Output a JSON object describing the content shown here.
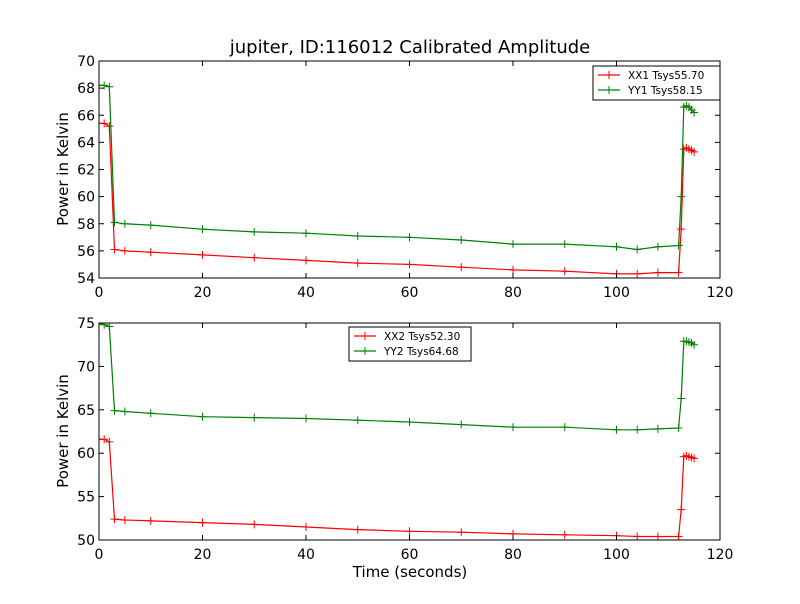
{
  "chart_data": [
    {
      "type": "line",
      "title": "jupiter, ID:116012 Calibrated Amplitude",
      "xlabel": "",
      "ylabel": "Power in Kelvin",
      "xlim": [
        0,
        120
      ],
      "ylim": [
        54,
        70
      ],
      "xticks": [
        "0",
        "20",
        "40",
        "60",
        "80",
        "100",
        "120"
      ],
      "yticks": [
        "54",
        "56",
        "58",
        "60",
        "62",
        "64",
        "66",
        "68",
        "70"
      ],
      "legend_position": "top-right",
      "series": [
        {
          "name": "XX1 Tsys55.70",
          "color": "#ff0000",
          "x": [
            0,
            1,
            2,
            3,
            5,
            10,
            20,
            30,
            40,
            50,
            60,
            70,
            80,
            90,
            100,
            104,
            108,
            112,
            112.5,
            113,
            113.5,
            114,
            114.5,
            115
          ],
          "y": [
            65.4,
            65.4,
            65.2,
            56.1,
            56.0,
            55.9,
            55.7,
            55.5,
            55.3,
            55.1,
            55.0,
            54.8,
            54.6,
            54.5,
            54.3,
            54.3,
            54.4,
            54.4,
            57.6,
            63.5,
            63.6,
            63.5,
            63.4,
            63.3
          ]
        },
        {
          "name": "YY1 Tsys58.15",
          "color": "#008000",
          "x": [
            0,
            1,
            2,
            3,
            5,
            10,
            20,
            30,
            40,
            50,
            60,
            70,
            80,
            90,
            100,
            104,
            108,
            112,
            112.5,
            113,
            113.5,
            114,
            114.5,
            115
          ],
          "y": [
            68.2,
            68.2,
            68.1,
            58.1,
            58.0,
            57.9,
            57.6,
            57.4,
            57.3,
            57.1,
            57.0,
            56.8,
            56.5,
            56.5,
            56.3,
            56.1,
            56.3,
            56.4,
            60.0,
            66.6,
            66.7,
            66.6,
            66.4,
            66.2
          ]
        }
      ]
    },
    {
      "type": "line",
      "title": "",
      "xlabel": "Time (seconds)",
      "ylabel": "Power in Kelvin",
      "xlim": [
        0,
        120
      ],
      "ylim": [
        50,
        75
      ],
      "xticks": [
        "0",
        "20",
        "40",
        "60",
        "80",
        "100",
        "120"
      ],
      "yticks": [
        "50",
        "55",
        "60",
        "65",
        "70",
        "75"
      ],
      "legend_position": "top-center",
      "series": [
        {
          "name": "XX2 Tsys52.30",
          "color": "#ff0000",
          "x": [
            0,
            1,
            2,
            3,
            5,
            10,
            20,
            30,
            40,
            50,
            60,
            70,
            80,
            90,
            100,
            104,
            108,
            112,
            112.5,
            113,
            113.5,
            114,
            114.5,
            115
          ],
          "y": [
            61.6,
            61.6,
            61.3,
            52.4,
            52.3,
            52.2,
            52.0,
            51.8,
            51.5,
            51.2,
            51.0,
            50.9,
            50.7,
            50.6,
            50.5,
            50.4,
            50.4,
            50.4,
            53.5,
            59.6,
            59.7,
            59.6,
            59.5,
            59.4
          ]
        },
        {
          "name": "YY2 Tsys64.68",
          "color": "#008000",
          "x": [
            0,
            1,
            2,
            3,
            5,
            10,
            20,
            30,
            40,
            50,
            60,
            70,
            80,
            90,
            100,
            104,
            108,
            112,
            112.5,
            113,
            113.5,
            114,
            114.5,
            115
          ],
          "y": [
            74.9,
            74.8,
            74.6,
            64.9,
            64.8,
            64.6,
            64.2,
            64.1,
            64.0,
            63.8,
            63.6,
            63.3,
            63.0,
            63.0,
            62.7,
            62.7,
            62.8,
            62.9,
            66.3,
            72.9,
            72.9,
            72.8,
            72.7,
            72.5
          ]
        }
      ]
    }
  ]
}
